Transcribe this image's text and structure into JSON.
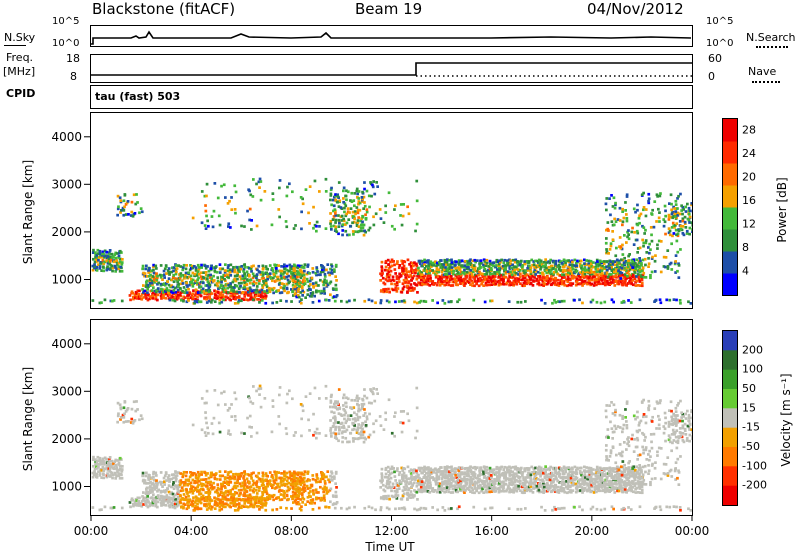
{
  "header": {
    "station": "Blackstone (fitACF)",
    "beam": "Beam 19",
    "date": "04/Nov/2012"
  },
  "top_panels": {
    "nsky_label": "N.Sky",
    "nsky_ticks": [
      "10^5",
      "10^0"
    ],
    "nsearch_label": "N.Search",
    "nsearch_ticks": [
      "10^5",
      "10^0"
    ],
    "freq_label": "Freq.",
    "freq_unit": "[MHz]",
    "freq_ticks": [
      "18",
      "8"
    ],
    "nave_label": "Nave",
    "nave_ticks": [
      "60",
      "0"
    ],
    "cpid_label": "CPID",
    "cpid_value": "tau (fast) 503"
  },
  "colors": {
    "power": [
      "#0000ff",
      "#1d4fa8",
      "#2f8f3a",
      "#43b93a",
      "#f5a000",
      "#ff6a00",
      "#ff2a00",
      "#ee0000"
    ],
    "velocity": [
      "#2a3fb8",
      "#2d6f2d",
      "#3aa02a",
      "#66cc33",
      "#c0c0b8",
      "#f2a000",
      "#ff7a00",
      "#ff3000",
      "#ee0000"
    ]
  },
  "chart_data": [
    {
      "type": "heatmap",
      "title": "",
      "xlabel": "Time UT",
      "ylabel": "Slant Range [km]",
      "xticks": [
        "00:00",
        "04:00",
        "08:00",
        "12:00",
        "16:00",
        "20:00",
        "00:00"
      ],
      "yticks": [
        "1000",
        "2000",
        "3000",
        "4000"
      ],
      "ylim": [
        400,
        4500
      ],
      "colorbar_label": "Power [dB]",
      "colorbar_ticks": [
        "4",
        "8",
        "12",
        "16",
        "20",
        "24",
        "28"
      ],
      "colorbar_range": [
        0,
        30
      ]
    },
    {
      "type": "heatmap",
      "title": "",
      "xlabel": "Time UT",
      "ylabel": "Slant Range [km]",
      "xticks": [
        "00:00",
        "04:00",
        "08:00",
        "12:00",
        "16:00",
        "20:00",
        "00:00"
      ],
      "yticks": [
        "1000",
        "2000",
        "3000",
        "4000"
      ],
      "ylim": [
        400,
        4500
      ],
      "colorbar_label": "Velocity [m s⁻¹]",
      "colorbar_ticks": [
        "200",
        "100",
        "50",
        "15",
        "-15",
        "-50",
        "-100",
        "-200"
      ],
      "colorbar_range": [
        -250,
        250
      ]
    }
  ]
}
